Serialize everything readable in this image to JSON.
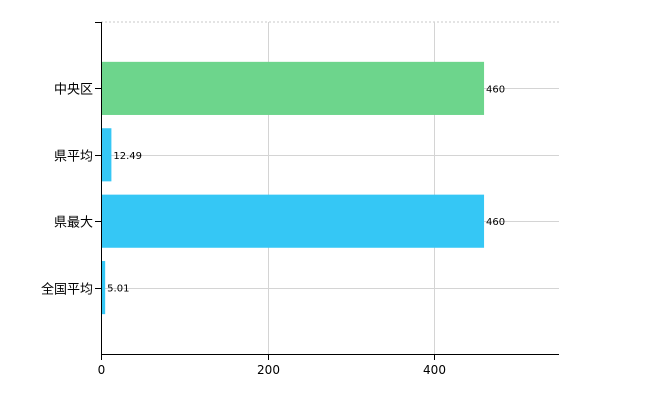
{
  "chart_data": {
    "type": "bar",
    "orientation": "horizontal",
    "categories": [
      "中央区",
      "県平均",
      "県最大",
      "全国平均"
    ],
    "values": [
      460,
      12.49,
      460,
      5.01
    ],
    "data_labels": [
      "460",
      "12.49",
      "460",
      "5.01"
    ],
    "bar_colors": [
      "#6dd58c",
      "#35c7f5",
      "#35c7f5",
      "#35c7f5"
    ],
    "xlim": [
      0,
      550
    ],
    "xticks": [
      0,
      200,
      400
    ],
    "xtick_labels": [
      "0",
      "200",
      "400"
    ],
    "grid": true,
    "legend": false,
    "title": "",
    "xlabel": "",
    "ylabel": ""
  }
}
